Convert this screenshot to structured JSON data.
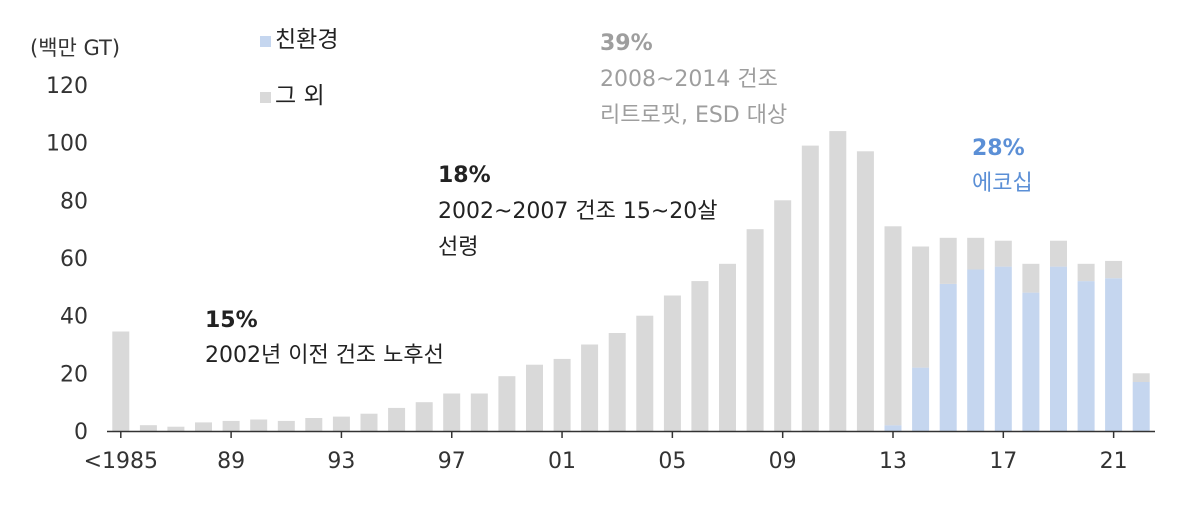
{
  "chart_data": {
    "type": "bar",
    "stacked": true,
    "y_unit_label": "(백만 GT)",
    "ylim": [
      0,
      120
    ],
    "yticks": [
      0,
      20,
      40,
      60,
      80,
      100,
      120
    ],
    "xtick_labels": [
      {
        "index": 0,
        "label": "<1985"
      },
      {
        "index": 4,
        "label": "89"
      },
      {
        "index": 8,
        "label": "93"
      },
      {
        "index": 12,
        "label": "97"
      },
      {
        "index": 16,
        "label": "01"
      },
      {
        "index": 20,
        "label": "05"
      },
      {
        "index": 24,
        "label": "09"
      },
      {
        "index": 28,
        "label": "13"
      },
      {
        "index": 32,
        "label": "17"
      },
      {
        "index": 36,
        "label": "21"
      }
    ],
    "categories": [
      "<1985",
      "1986",
      "1987",
      "1988",
      "1989",
      "1990",
      "1991",
      "1992",
      "1993",
      "1994",
      "1995",
      "1996",
      "1997",
      "1998",
      "1999",
      "2000",
      "2001",
      "2002",
      "2003",
      "2004",
      "2005",
      "2006",
      "2007",
      "2008",
      "2009",
      "2010",
      "2011",
      "2012",
      "2013",
      "2014",
      "2015",
      "2016",
      "2017",
      "2018",
      "2019",
      "2020",
      "2021",
      "2022"
    ],
    "series": [
      {
        "name": "친환경",
        "color": "#c5d6ef",
        "values": [
          0,
          0,
          0,
          0,
          0,
          0,
          0,
          0,
          0,
          0,
          0,
          0,
          0,
          0,
          0,
          0,
          0,
          0,
          0,
          0,
          0,
          0,
          0,
          0,
          0,
          0,
          0,
          0,
          2,
          22,
          51,
          56,
          57,
          48,
          57,
          52,
          53,
          17
        ]
      },
      {
        "name": "그 외",
        "color": "#d9d9d9",
        "values": [
          34.5,
          2,
          1.5,
          3,
          3.5,
          4,
          3.5,
          4.5,
          5,
          6,
          8,
          10,
          13,
          13,
          19,
          23,
          25,
          30,
          34,
          40,
          47,
          52,
          58,
          70,
          80,
          99,
          104,
          97,
          69,
          42,
          16,
          11,
          9,
          10,
          9,
          6,
          6,
          3
        ]
      }
    ],
    "legend_placement": "top-left",
    "grid": false,
    "annotations": [
      {
        "pct": "15%",
        "lines": [
          "2002년 이전 건조 노후선"
        ],
        "color": "#222222"
      },
      {
        "pct": "18%",
        "lines": [
          "2002~2007 건조 15~20살",
          "선령"
        ],
        "color": "#222222"
      },
      {
        "pct": "39%",
        "lines": [
          "2008~2014 건조",
          "리트로핏, ESD 대상"
        ],
        "color": "#9e9e9e"
      },
      {
        "pct": "28%",
        "lines": [
          "에코십"
        ],
        "color": "#5b8fd6"
      }
    ]
  }
}
